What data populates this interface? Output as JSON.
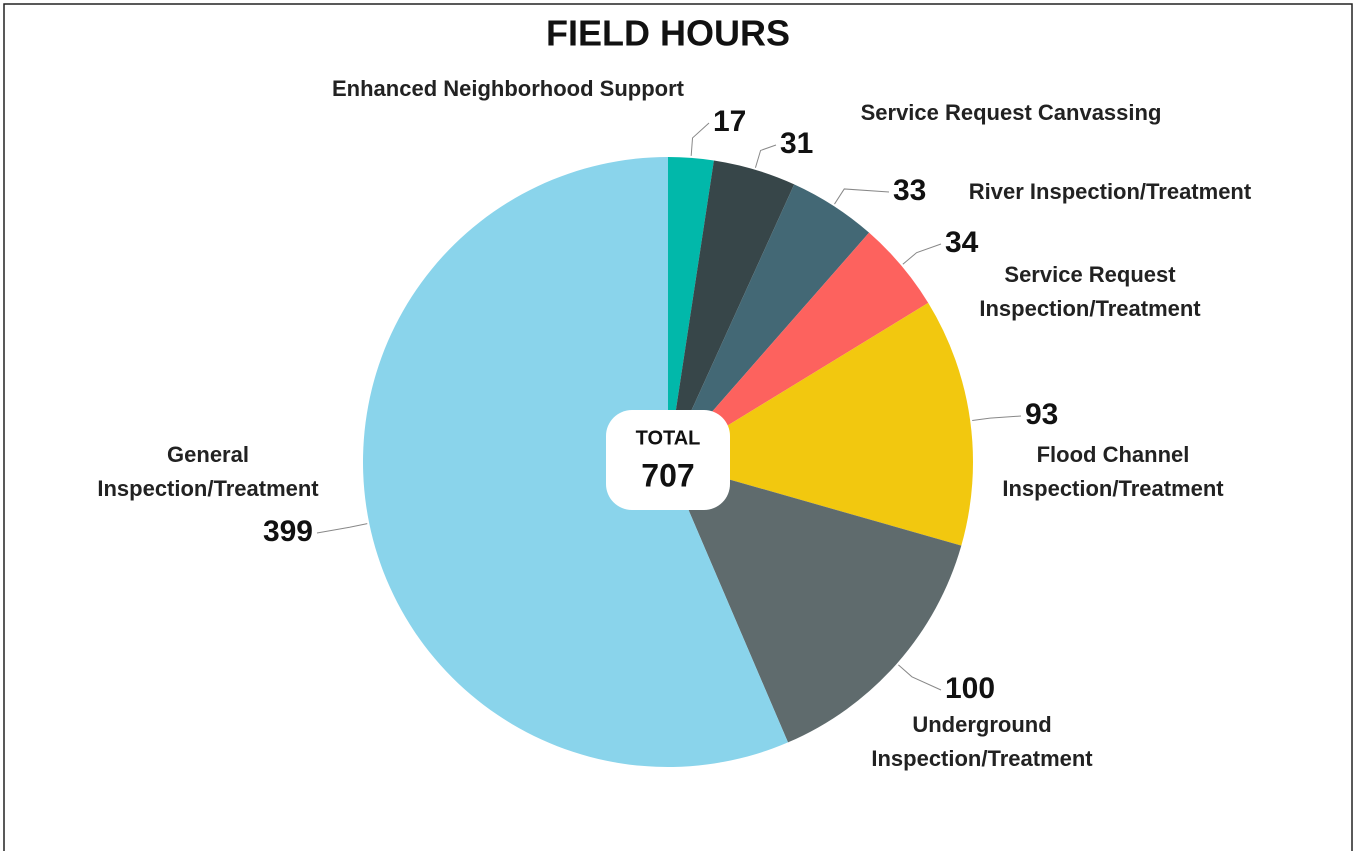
{
  "chart_data": {
    "type": "pie",
    "title": "FIELD HOURS",
    "categories": [
      "Enhanced Neighborhood Support",
      "Service Request Canvassing",
      "River Inspection/Treatment",
      "Service Request Inspection/Treatment",
      "Flood Channel Inspection/Treatment",
      "Underground Inspection/Treatment",
      "General Inspection/Treatment"
    ],
    "values": [
      17,
      31,
      33,
      34,
      93,
      100,
      399
    ],
    "colors": [
      "#01b8aa",
      "#374649",
      "#436875",
      "#fd625e",
      "#f2c80f",
      "#5f6b6d",
      "#8ad4eb"
    ],
    "center_label": "TOTAL",
    "total": 707
  }
}
